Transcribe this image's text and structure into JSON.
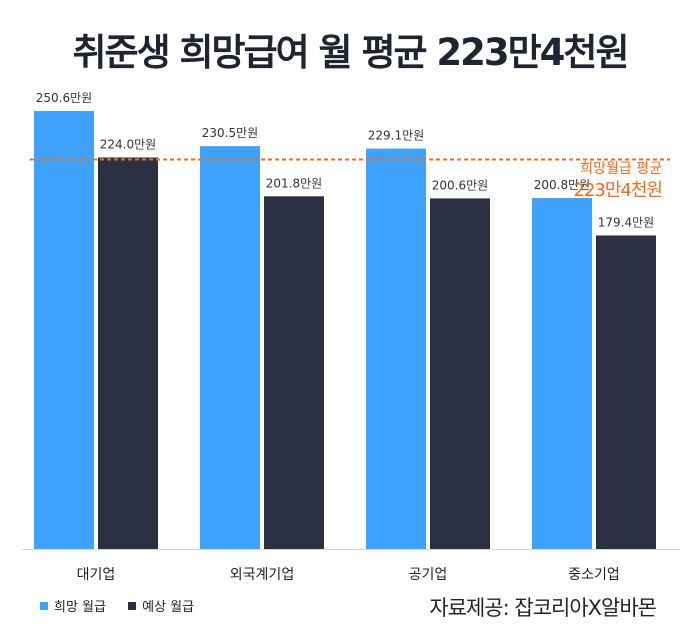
{
  "chart_data": {
    "type": "bar",
    "title": "취준생 희망급여 월 평균 223만4천원",
    "categories": [
      "대기업",
      "외국계기업",
      "공기업",
      "중소기업"
    ],
    "series": [
      {
        "name": "희망 월급",
        "color": "#3fa2ff",
        "values": [
          250.6,
          230.5,
          229.1,
          200.8
        ],
        "labels": [
          "250.6만원",
          "230.5만원",
          "229.1만원",
          "200.8만원"
        ]
      },
      {
        "name": "예상 월급",
        "color": "#2b3142",
        "values": [
          224.0,
          201.8,
          200.6,
          179.4
        ],
        "labels": [
          "224.0만원",
          "201.8만원",
          "200.6만원",
          "179.4만원"
        ]
      }
    ],
    "reference_line": {
      "value": 223.4,
      "label_line1": "희망월급 평균",
      "label_line2": "223만4천원",
      "color": "#f26b22"
    },
    "ylim": [
      0,
      250.6
    ],
    "xlabel": "",
    "ylabel": "",
    "grid": false,
    "legend": "bottom-left"
  },
  "source": "자료제공: 잡코리아X알바몬"
}
